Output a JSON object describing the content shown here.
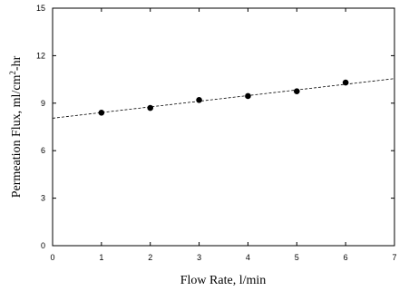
{
  "chart_data": {
    "type": "scatter",
    "title": "",
    "xlabel": "Flow Rate, l/min",
    "ylabel_main": "Permeation Flux, ml/cm",
    "ylabel_sup": "2",
    "ylabel_tail": "-hr",
    "xlim": [
      0,
      7
    ],
    "ylim": [
      0,
      15
    ],
    "xticks": [
      0,
      1,
      2,
      3,
      4,
      5,
      6,
      7
    ],
    "yticks": [
      0,
      3,
      6,
      9,
      12,
      15
    ],
    "grid": false,
    "legend": "none",
    "series": [
      {
        "x": [
          1,
          2,
          3,
          4,
          5,
          6
        ],
        "y": [
          8.4,
          8.7,
          9.2,
          9.45,
          9.75,
          10.3
        ]
      }
    ],
    "fit_line": {
      "x": [
        0,
        7
      ],
      "y": [
        8.05,
        10.55
      ],
      "style": "dashed"
    }
  }
}
